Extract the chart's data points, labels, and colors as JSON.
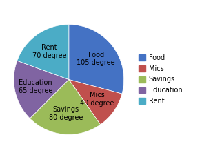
{
  "labels": [
    "Food",
    "Mics",
    "Savings",
    "Education",
    "Rent"
  ],
  "degrees": [
    105,
    40,
    80,
    65,
    70
  ],
  "colors": [
    "#4472C4",
    "#C0504D",
    "#9BBB59",
    "#8064A2",
    "#4BACC6"
  ],
  "label_texts": [
    "Food\n105 degree",
    "Mics\n40 degree",
    "Savings\n80 degree",
    "Education\n65 degree",
    "Rent\n70 degree"
  ],
  "legend_labels": [
    "Food",
    "Mics",
    "Savings",
    "Education",
    "Rent"
  ],
  "startangle": 90,
  "figsize": [
    3.22,
    2.31
  ],
  "dpi": 100,
  "font_size": 7.0,
  "legend_font_size": 7.0
}
